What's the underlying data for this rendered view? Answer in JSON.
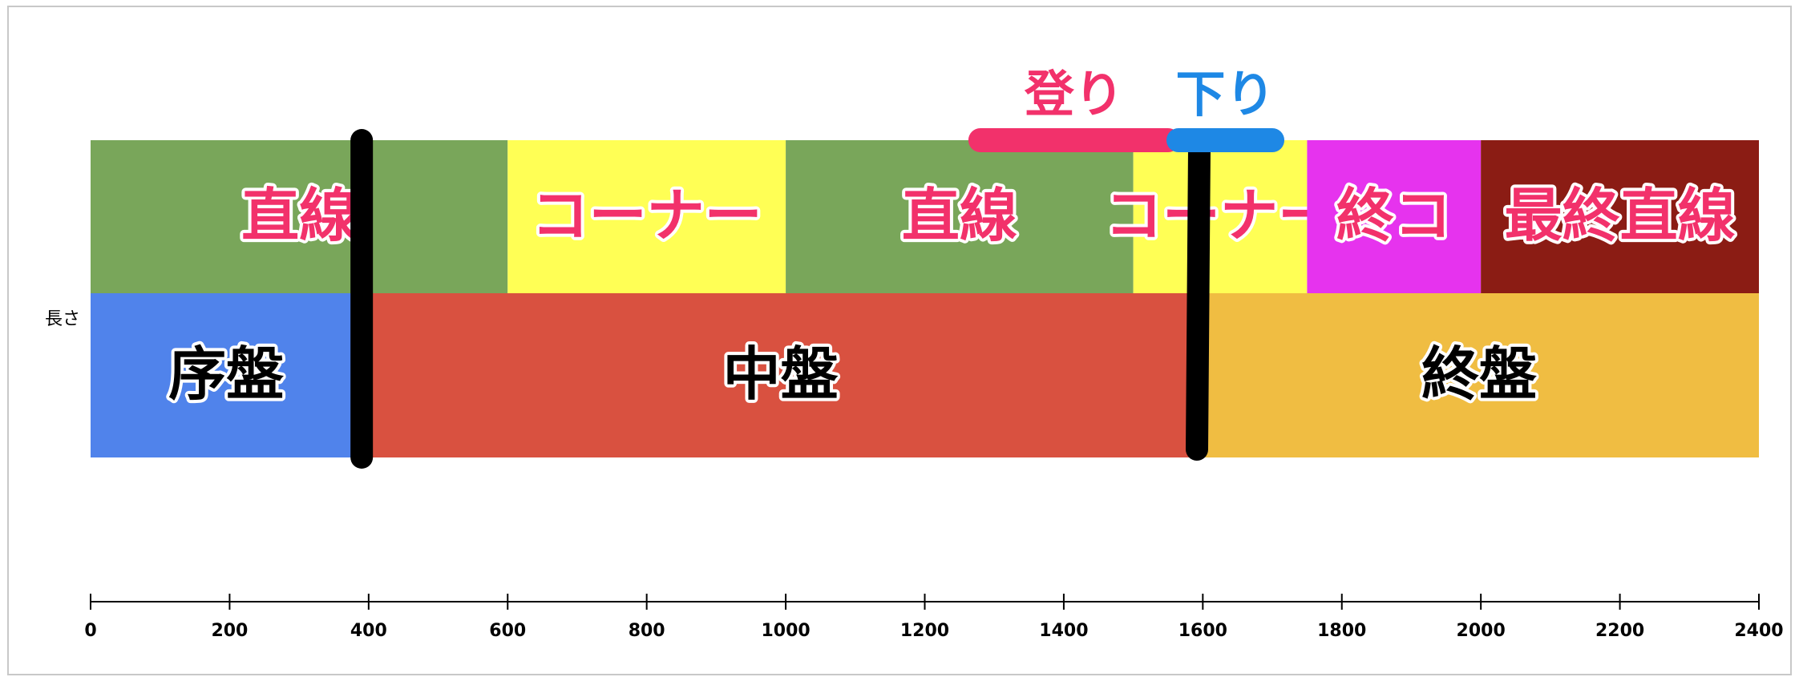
{
  "chart_data": {
    "type": "stacked-timeline",
    "row_label": "長さ",
    "xlim": [
      0,
      2400
    ],
    "xticks": [
      0,
      200,
      400,
      600,
      800,
      1000,
      1200,
      1400,
      1600,
      1800,
      2000,
      2200,
      2400
    ],
    "rows": [
      {
        "label_color": "#f2316b",
        "series": [
          {
            "name": "直線",
            "color": "#79a65a",
            "values": [
              600
            ]
          },
          {
            "name": "コーナー",
            "color": "#ffff55",
            "values": [
              400
            ]
          },
          {
            "name": "直線",
            "color": "#79a65a",
            "values": [
              500
            ]
          },
          {
            "name": "コーナー",
            "color": "#ffff55",
            "values": [
              250
            ]
          },
          {
            "name": "終コ",
            "color": "#e633ee",
            "values": [
              250
            ]
          },
          {
            "name": "最終直線",
            "color": "#8b1c14",
            "values": [
              400
            ]
          }
        ]
      },
      {
        "label_color": "#000000",
        "series": [
          {
            "name": "序盤",
            "color": "#5083eb",
            "values": [
              390
            ]
          },
          {
            "name": "中盤",
            "color": "#d95140",
            "values": [
              1205
            ]
          },
          {
            "name": "終盤",
            "color": "#f0bd42",
            "values": [
              805
            ]
          }
        ]
      }
    ],
    "vlines": [
      390,
      1595
    ],
    "annotations": [
      {
        "text": "登り",
        "color": "#f2316b",
        "xrange": [
          1280,
          1550
        ]
      },
      {
        "text": "下り",
        "color": "#1e88e5",
        "xrange": [
          1565,
          1700
        ]
      }
    ]
  }
}
